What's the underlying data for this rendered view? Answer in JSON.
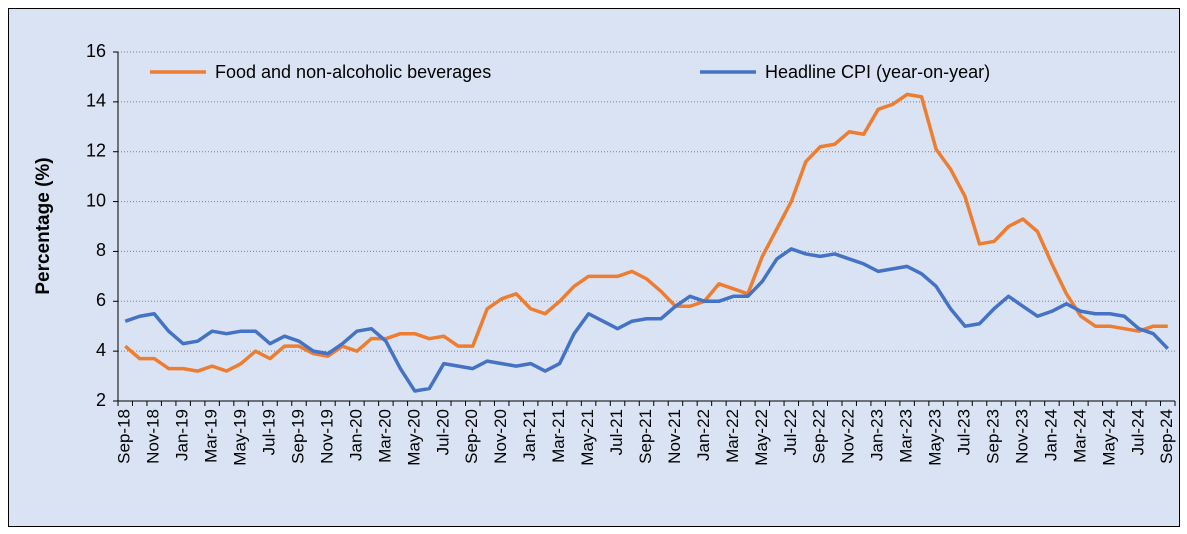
{
  "chart_data": {
    "type": "line",
    "y_label": "Percentage (%)",
    "categories": [
      "Sep-18",
      null,
      "Nov-18",
      null,
      "Jan-19",
      null,
      "Mar-19",
      null,
      "May-19",
      null,
      "Jul-19",
      null,
      "Sep-19",
      null,
      "Nov-19",
      null,
      "Jan-20",
      null,
      "Mar-20",
      null,
      "May-20",
      null,
      "Jul-20",
      null,
      "Sep-20",
      null,
      "Nov-20",
      null,
      "Jan-21",
      null,
      "Mar-21",
      null,
      "May-21",
      null,
      "Jul-21",
      null,
      "Sep-21",
      null,
      "Nov-21",
      null,
      "Jan-22",
      null,
      "Mar-22",
      null,
      "May-22",
      null,
      "Jul-22",
      null,
      "Sep-22",
      null,
      "Nov-22",
      null,
      "Jan-23",
      null,
      "Mar-23",
      null,
      "May-23",
      null,
      "Jul-23",
      null,
      "Sep-23",
      null,
      "Nov-23",
      null,
      "Jan-24",
      null,
      "Mar-24",
      null,
      "May-24",
      null,
      "Jul-24",
      null,
      "Sep-24"
    ],
    "series": [
      {
        "name": "Food and non-alcoholic beverages",
        "color": "#ed7d31",
        "values": [
          4.2,
          3.7,
          3.7,
          3.3,
          3.3,
          3.2,
          3.4,
          3.2,
          3.5,
          4.0,
          3.7,
          4.2,
          4.2,
          3.9,
          3.8,
          4.2,
          4.0,
          4.5,
          4.5,
          4.7,
          4.7,
          4.5,
          4.6,
          4.2,
          4.2,
          5.7,
          6.1,
          6.3,
          5.7,
          5.5,
          6.0,
          6.6,
          7.0,
          7.0,
          7.0,
          7.2,
          6.9,
          6.4,
          5.8,
          5.8,
          6.0,
          6.7,
          6.5,
          6.3,
          7.8,
          8.9,
          10.0,
          11.6,
          12.2,
          12.3,
          12.8,
          12.7,
          13.7,
          13.9,
          14.3,
          14.2,
          12.1,
          11.3,
          10.2,
          8.3,
          8.4,
          9.0,
          9.3,
          8.8,
          7.5,
          6.3,
          5.4,
          5.0,
          5.0,
          4.9,
          4.8,
          5.0,
          5.0
        ]
      },
      {
        "name": "Headline CPI (year-on-year)",
        "color": "#4472c4",
        "values": [
          5.2,
          5.4,
          5.5,
          4.8,
          4.3,
          4.4,
          4.8,
          4.7,
          4.8,
          4.8,
          4.3,
          4.6,
          4.4,
          4.0,
          3.9,
          4.3,
          4.8,
          4.9,
          4.4,
          3.3,
          2.4,
          2.5,
          3.5,
          3.4,
          3.3,
          3.6,
          3.5,
          3.4,
          3.5,
          3.2,
          3.5,
          4.7,
          5.5,
          5.2,
          4.9,
          5.2,
          5.3,
          5.3,
          5.8,
          6.2,
          6.0,
          6.0,
          6.2,
          6.2,
          6.8,
          7.7,
          8.1,
          7.9,
          7.8,
          7.9,
          7.7,
          7.5,
          7.2,
          7.3,
          7.4,
          7.1,
          6.6,
          5.7,
          5.0,
          5.1,
          5.7,
          6.2,
          5.8,
          5.4,
          5.6,
          5.9,
          5.6,
          5.5,
          5.5,
          5.4,
          4.9,
          4.7,
          4.1
        ]
      }
    ],
    "ylim": [
      2,
      16
    ],
    "yticks": [
      2,
      4,
      6,
      8,
      10,
      12,
      14,
      16
    ],
    "grid": true,
    "legend": "top"
  }
}
